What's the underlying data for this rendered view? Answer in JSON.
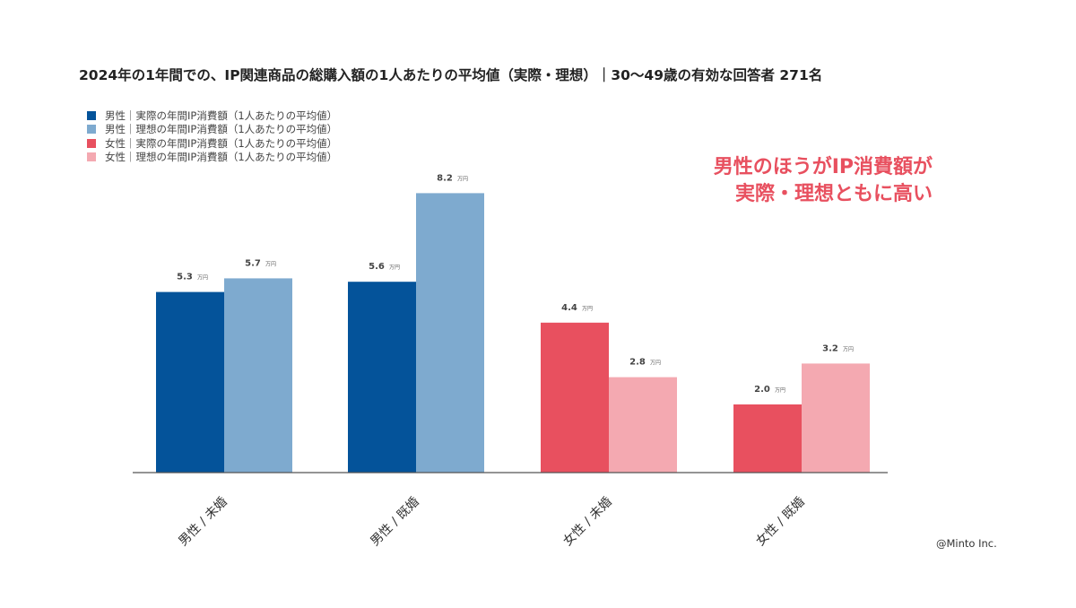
{
  "title": "2024年の1年間での、IP関連商品の総購入額の1人あたりの平均値（実際・理想）｜30〜49歳の有効な回答者 271名",
  "annotation": [
    "男性のほうがIP消費額が",
    "実際・理想ともに高い"
  ],
  "credit": "@Minto Inc.",
  "chart_data": {
    "type": "bar",
    "title": "2024年の1年間での、IP関連商品の総購入額の1人あたりの平均値（実際・理想）｜30〜49歳の有効な回答者 271名",
    "categories": [
      "男性 / 未婚",
      "男性 / 既婚",
      "女性 / 未婚",
      "女性 / 既婚"
    ],
    "unit": "万円",
    "ylim": [
      0,
      9
    ],
    "grid": false,
    "legend_position": "top-left",
    "series": [
      {
        "name": "男性｜実際の年間IP消費額（1人あたりの平均値）",
        "color": "#04539a"
      },
      {
        "name": "男性｜理想の年間IP消費額（1人あたりの平均値）",
        "color": "#7eaacf"
      },
      {
        "name": "女性｜実際の年間IP消費額（1人あたりの平均値）",
        "color": "#e8505f"
      },
      {
        "name": "女性｜理想の年間IP消費額（1人あたりの平均値）",
        "color": "#f4a9b1"
      }
    ],
    "bars": [
      {
        "category": 0,
        "series": 0,
        "value": 5.3,
        "label": "5.3"
      },
      {
        "category": 0,
        "series": 1,
        "value": 5.7,
        "label": "5.7"
      },
      {
        "category": 1,
        "series": 0,
        "value": 5.6,
        "label": "5.6"
      },
      {
        "category": 1,
        "series": 1,
        "value": 8.2,
        "label": "8.2"
      },
      {
        "category": 2,
        "series": 2,
        "value": 4.4,
        "label": "4.4"
      },
      {
        "category": 2,
        "series": 3,
        "value": 2.8,
        "label": "2.8"
      },
      {
        "category": 3,
        "series": 2,
        "value": 2.0,
        "label": "2.0"
      },
      {
        "category": 3,
        "series": 3,
        "value": 3.2,
        "label": "3.2"
      }
    ]
  }
}
